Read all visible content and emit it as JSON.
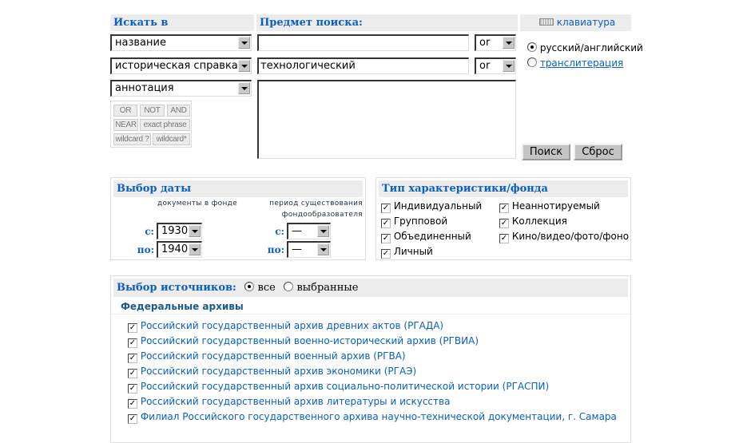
{
  "search": {
    "field_header": "Искать в",
    "subject_header": "Предмет поиска:",
    "keyboard_link": "клавиатура",
    "fields": [
      "название",
      "историческая справка",
      "аннотация"
    ],
    "terms": [
      "",
      "технологический"
    ],
    "operators": [
      "or",
      "or"
    ],
    "buttons": [
      "OR",
      "NOT",
      "AND",
      "NEAR",
      "exact phrase",
      "wildcard ?",
      "wildcard*"
    ],
    "lang_options": [
      {
        "label": "русский/английский",
        "selected": true
      },
      {
        "label": "транслитерация",
        "selected": false
      }
    ],
    "search_button": "Поиск",
    "reset_button": "Сброс"
  },
  "date": {
    "header": "Выбор даты",
    "col1": "документы в фонде",
    "col2a": "период существования",
    "col2b": "фондообразователя",
    "from_label": "с:",
    "to_label": "по:",
    "doc_from": "1930",
    "doc_to": "1940",
    "period_from": "—",
    "period_to": "—"
  },
  "type": {
    "header": "Тип характеристики/фонда",
    "items": [
      {
        "label": "Индивидуальный",
        "checked": true
      },
      {
        "label": "Групповой",
        "checked": true
      },
      {
        "label": "Объединенный",
        "checked": true
      },
      {
        "label": "Личный",
        "checked": true
      },
      {
        "label": "Неаннотируемый",
        "checked": true
      },
      {
        "label": "Коллекция",
        "checked": true
      },
      {
        "label": "Кино/видео/фото/фоно",
        "checked": true
      }
    ]
  },
  "sources": {
    "header": "Выбор источников:",
    "all": "все",
    "selected": "выбранные",
    "all_selected": true,
    "group": "Федеральные архивы",
    "items": [
      "Российский государственный архив древних актов (РГАДА)",
      "Российский государственный военно-исторический архив (РГВИА)",
      "Российский государственный военный архив (РГВА)",
      "Российский государственный архив экономики (РГАЭ)",
      "Российский государственный архив социально-политической истории (РГАСПИ)",
      "Российский государственный архив литературы и искусства",
      "Филиал Российского государственного архива научно-технической документации, г. Самара"
    ]
  }
}
